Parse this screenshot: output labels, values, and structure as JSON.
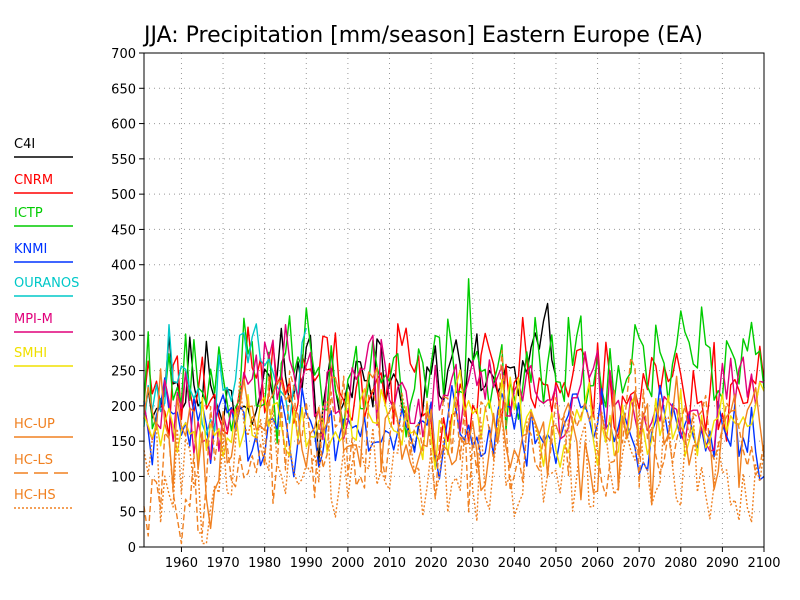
{
  "chart_data": {
    "type": "line",
    "title": "JJA: Precipitation [mm/season] Eastern Europe (EA)",
    "xlabel": "",
    "ylabel": "",
    "xlim": [
      1951,
      2100
    ],
    "ylim": [
      0,
      700
    ],
    "x_ticks": [
      1960,
      1970,
      1980,
      1990,
      2000,
      2010,
      2020,
      2030,
      2040,
      2050,
      2060,
      2070,
      2080,
      2090,
      2100
    ],
    "y_ticks": [
      0,
      50,
      100,
      150,
      200,
      250,
      300,
      350,
      400,
      450,
      500,
      550,
      600,
      650,
      700
    ],
    "grid": true,
    "legend_position": "left",
    "series": [
      {
        "name": "C4I",
        "color": "#000000",
        "style": "solid",
        "x_start": 1951,
        "x_end": 2050,
        "mean": 230,
        "amp": 38,
        "seed": 11,
        "peaks": [
          [
            1957,
            300
          ],
          [
            1991,
            300
          ],
          [
            2021,
            285
          ],
          [
            2047,
            320
          ],
          [
            2048,
            345
          ]
        ]
      },
      {
        "name": "CNRM",
        "color": "#ff0000",
        "style": "solid",
        "x_start": 1951,
        "x_end": 2100,
        "mean": 230,
        "amp": 38,
        "seed": 23,
        "peaks": [
          [
            2014,
            310
          ],
          [
            2042,
            325
          ],
          [
            2062,
            290
          ]
        ]
      },
      {
        "name": "ICTP",
        "color": "#00cc00",
        "style": "solid",
        "x_start": 1951,
        "x_end": 2100,
        "mean": 240,
        "amp": 42,
        "seed": 37,
        "peaks": [
          [
            1952,
            305
          ],
          [
            2029,
            380
          ],
          [
            2053,
            325
          ],
          [
            2069,
            315
          ],
          [
            2085,
            340
          ],
          [
            2095,
            295
          ],
          [
            2100,
            225
          ]
        ]
      },
      {
        "name": "KNMI",
        "color": "#0033ff",
        "style": "solid",
        "x_start": 1951,
        "x_end": 2100,
        "mean": 170,
        "amp": 28,
        "seed": 41,
        "peaks": [
          [
            2099,
            95
          ],
          [
            2100,
            100
          ]
        ]
      },
      {
        "name": "OURANOS",
        "color": "#00c8c8",
        "style": "solid",
        "x_start": 1951,
        "x_end": 1990,
        "mean": 250,
        "amp": 38,
        "seed": 53,
        "peaks": [
          [
            1957,
            315
          ],
          [
            1974,
            300
          ],
          [
            1990,
            310
          ]
        ]
      },
      {
        "name": "MPI-M",
        "color": "#e0007a",
        "style": "solid",
        "x_start": 1951,
        "x_end": 2100,
        "mean": 215,
        "amp": 35,
        "seed": 67,
        "peaks": [
          [
            1985,
            315
          ],
          [
            2006,
            300
          ]
        ]
      },
      {
        "name": "SMHI",
        "color": "#f0e000",
        "style": "solid",
        "x_start": 1951,
        "x_end": 2100,
        "mean": 180,
        "amp": 30,
        "seed": 79,
        "peaks": []
      },
      {
        "name": "HC-UP",
        "color": "#f08020",
        "style": "solid",
        "x_start": 1951,
        "x_end": 2100,
        "mean": 170,
        "amp": 40,
        "seed": 83,
        "peaks": [
          [
            1964,
            110
          ],
          [
            2073,
            60
          ]
        ]
      },
      {
        "name": "HC-LS",
        "color": "#f08020",
        "style": "dashed",
        "x_start": 1951,
        "x_end": 2100,
        "mean": 140,
        "amp": 45,
        "seed": 97,
        "peaks": [
          [
            1964,
            20
          ],
          [
            1965,
            20
          ]
        ]
      },
      {
        "name": "HC-HS",
        "color": "#f08020",
        "style": "dotted",
        "x_start": 1951,
        "x_end": 2100,
        "mean": 120,
        "amp": 45,
        "seed": 101,
        "peaks": [
          [
            2097,
            35
          ],
          [
            2087,
            40
          ]
        ]
      }
    ]
  }
}
